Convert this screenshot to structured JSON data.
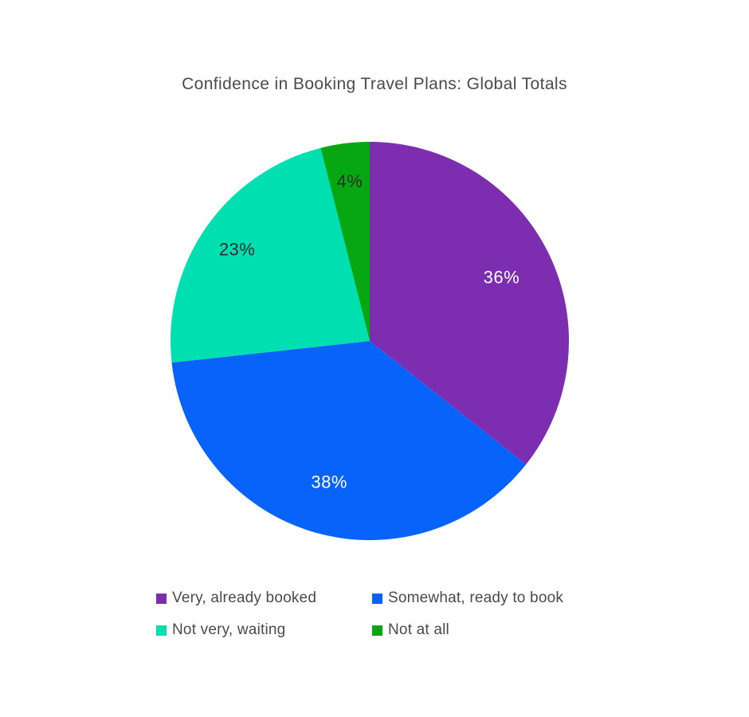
{
  "chart_data": {
    "type": "pie",
    "title": "Confidence in Booking Travel Plans: Global Totals",
    "categories": [
      "Very, already booked",
      "Somewhat, ready to book",
      "Not very, waiting",
      "Not at all"
    ],
    "values": [
      36,
      38,
      23,
      4
    ],
    "unit": "%",
    "slice_labels": [
      "36%",
      "38%",
      "23%",
      "4%"
    ],
    "colors": [
      "#7C2DB0",
      "#0763FA",
      "#00DFB0",
      "#07A613"
    ],
    "slice_label_colors": [
      "#FFFFFF",
      "#FFFFFF",
      "#2E2E2E",
      "#2E2E2E"
    ],
    "start_angle": 0,
    "direction": "clockwise",
    "legend_position": "bottom",
    "background_color": "#FFFFFF",
    "text_color": "#4A4A4A"
  }
}
